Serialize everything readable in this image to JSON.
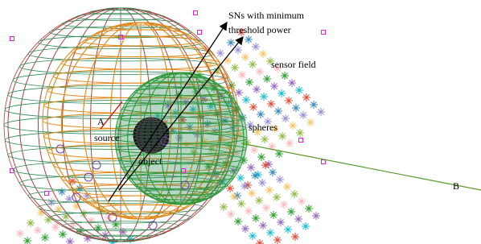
{
  "annotations": {
    "sn_label": [
      "SNs with minimum",
      "threshold power"
    ],
    "sensor_field": "sensor field",
    "spheres": "spheres",
    "point_a": "A",
    "source": "source",
    "object": "object",
    "point_b": "B"
  }
}
